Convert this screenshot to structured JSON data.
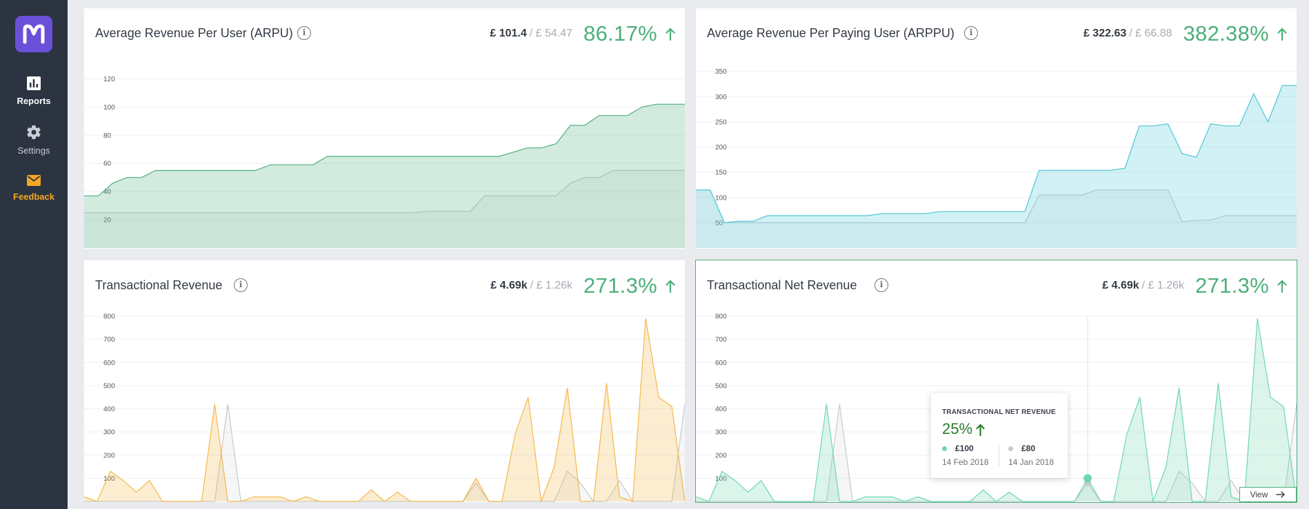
{
  "nav": {
    "reports_label": "Reports",
    "settings_label": "Settings",
    "feedback_label": "Feedback"
  },
  "colors": {
    "positive": "#4caf7a",
    "sidebar": "#2b3440",
    "logo": "#6a4fd8",
    "feedback": "#f5a623"
  },
  "cards": {
    "arpu": {
      "title": "Average Revenue Per User (ARPU)",
      "current": "£ 101.4",
      "previous": "/ £ 54.47",
      "change": "86.17%",
      "chart_data": {
        "type": "area",
        "y_ticks": [
          "20",
          "40",
          "60",
          "80",
          "100",
          "120"
        ],
        "ylim": [
          0,
          130
        ],
        "color": "#4caf7a",
        "series": [
          {
            "values": [
              37,
              37,
              46,
              50,
              50,
              55,
              55,
              55,
              55,
              55,
              55,
              55,
              55,
              59,
              59,
              59,
              59,
              65,
              65,
              65,
              65,
              65,
              65,
              65,
              65,
              65,
              65,
              65,
              65,
              65,
              68,
              71,
              71,
              74,
              87,
              87,
              94,
              94,
              94,
              100,
              102,
              102,
              102
            ]
          },
          {
            "values": [
              25,
              25,
              25,
              25,
              25,
              25,
              25,
              25,
              25,
              25,
              25,
              25,
              25,
              25,
              25,
              25,
              25,
              25,
              25,
              25,
              25,
              25,
              25,
              25,
              26,
              26,
              26,
              26,
              37,
              37,
              37,
              37,
              37,
              37,
              46,
              50,
              50,
              55,
              55,
              55,
              55,
              55,
              55
            ]
          }
        ]
      }
    },
    "arppu": {
      "title": "Average Revenue Per Paying User (ARPPU)",
      "current": "£ 322.63",
      "previous": "/ £ 66.88",
      "change": "382.38%",
      "chart_data": {
        "type": "area",
        "y_ticks": [
          "50",
          "100",
          "150",
          "200",
          "250",
          "300",
          "350"
        ],
        "ylim": [
          0,
          370
        ],
        "color": "#4bc6d6",
        "series": [
          {
            "values": [
              115,
              115,
              50,
              53,
              53,
              64,
              64,
              64,
              64,
              64,
              64,
              64,
              64,
              68,
              68,
              68,
              68,
              72,
              72,
              72,
              72,
              72,
              72,
              72,
              154,
              154,
              154,
              154,
              154,
              154,
              158,
              242,
              242,
              246,
              187,
              180,
              246,
              242,
              242,
              306,
              250,
              322,
              322
            ]
          },
          {
            "values": [
              115,
              115,
              50,
              50,
              50,
              50,
              50,
              50,
              50,
              50,
              50,
              50,
              50,
              50,
              50,
              50,
              50,
              50,
              50,
              50,
              50,
              50,
              50,
              50,
              105,
              105,
              105,
              105,
              115,
              115,
              115,
              115,
              115,
              115,
              52,
              55,
              55,
              64,
              64,
              64,
              64,
              64,
              64
            ]
          }
        ]
      }
    },
    "trans": {
      "title": "Transactional Revenue",
      "current": "£ 4.69k",
      "previous": "/ £ 1.26k",
      "change": "271.3%",
      "chart_data": {
        "type": "area",
        "y_ticks": [
          "100",
          "200",
          "300",
          "400",
          "500",
          "600",
          "700",
          "800"
        ],
        "ylim": [
          0,
          800
        ],
        "color": "#f5b748",
        "series": [
          {
            "values": [
              20,
              0,
              130,
              90,
              40,
              90,
              0,
              0,
              0,
              0,
              420,
              0,
              0,
              20,
              20,
              20,
              0,
              20,
              0,
              0,
              0,
              0,
              50,
              0,
              40,
              0,
              0,
              0,
              0,
              0,
              100,
              0,
              0,
              290,
              450,
              0,
              150,
              490,
              0,
              0,
              510,
              20,
              0,
              790,
              450,
              410,
              0
            ]
          },
          {
            "values": [
              0,
              0,
              0,
              0,
              0,
              0,
              0,
              0,
              0,
              0,
              0,
              420,
              0,
              0,
              0,
              0,
              0,
              0,
              0,
              0,
              0,
              0,
              0,
              0,
              0,
              0,
              0,
              0,
              0,
              0,
              80,
              0,
              0,
              0,
              0,
              0,
              0,
              130,
              80,
              0,
              0,
              90,
              0,
              0,
              0,
              0,
              420
            ]
          }
        ]
      }
    },
    "net": {
      "title": "Transactional Net Revenue",
      "current": "£ 4.69k",
      "previous": "/ £ 1.26k",
      "change": "271.3%",
      "view_label": "View",
      "chart_data": {
        "type": "area",
        "y_ticks": [
          "100",
          "200",
          "300",
          "400",
          "500",
          "600",
          "700",
          "800"
        ],
        "ylim": [
          0,
          800
        ],
        "color": "#6fd6b0",
        "series": [
          {
            "values": [
              20,
              0,
              130,
              90,
              40,
              90,
              0,
              0,
              0,
              0,
              420,
              0,
              0,
              20,
              20,
              20,
              0,
              20,
              0,
              0,
              0,
              0,
              50,
              0,
              40,
              0,
              0,
              0,
              0,
              0,
              100,
              0,
              0,
              290,
              450,
              0,
              150,
              490,
              0,
              0,
              510,
              20,
              0,
              790,
              450,
              410,
              0
            ]
          },
          {
            "values": [
              0,
              0,
              0,
              0,
              0,
              0,
              0,
              0,
              0,
              0,
              0,
              420,
              0,
              0,
              0,
              0,
              0,
              0,
              0,
              0,
              0,
              0,
              0,
              0,
              0,
              0,
              0,
              0,
              0,
              0,
              80,
              0,
              0,
              0,
              0,
              0,
              0,
              130,
              80,
              0,
              0,
              90,
              0,
              0,
              0,
              0,
              420
            ]
          }
        ]
      },
      "tooltip": {
        "title": "TRANSACTIONAL NET REVENUE",
        "change": "25%",
        "current_value": "£100",
        "current_date": "14 Feb 2018",
        "previous_value": "£80",
        "previous_date": "14 Jan 2018",
        "hover_index": 30
      }
    }
  }
}
